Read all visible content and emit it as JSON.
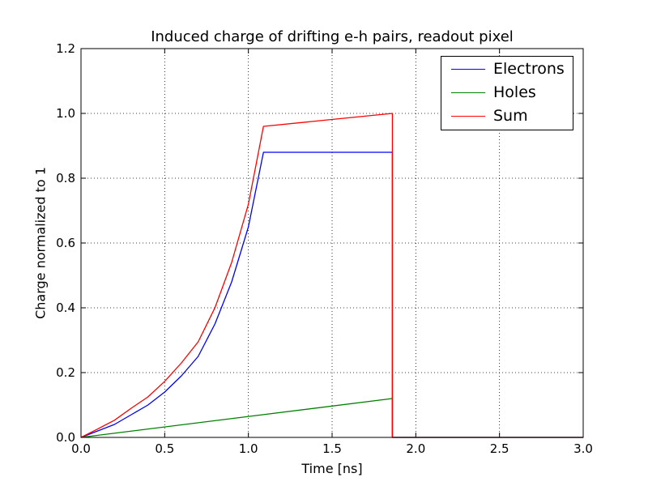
{
  "chart_data": {
    "type": "line",
    "title": "Induced charge of drifting e-h pairs, readout pixel",
    "xlabel": "Time [ns]",
    "ylabel": "Charge normalized to 1",
    "xlim": [
      0,
      3
    ],
    "ylim": [
      0,
      1.2
    ],
    "xticks": [
      "0.0",
      "0.5",
      "1.0",
      "1.5",
      "2.0",
      "2.5",
      "3.0"
    ],
    "yticks": [
      "0.0",
      "0.2",
      "0.4",
      "0.6",
      "0.8",
      "1.0",
      "1.2"
    ],
    "grid": true,
    "legend_position": "top-right",
    "series": [
      {
        "name": "Electrons",
        "color": "#0000ff",
        "x": [
          0,
          0.1,
          0.2,
          0.3,
          0.4,
          0.5,
          0.6,
          0.7,
          0.8,
          0.9,
          1.0,
          1.09,
          1.86,
          1.86,
          3.0
        ],
        "y": [
          0,
          0.02,
          0.04,
          0.07,
          0.1,
          0.14,
          0.19,
          0.25,
          0.35,
          0.48,
          0.65,
          0.88,
          0.88,
          0,
          0
        ]
      },
      {
        "name": "Holes",
        "color": "#008000",
        "x": [
          0,
          1.86,
          1.86,
          3.0
        ],
        "y": [
          0,
          0.12,
          0,
          0
        ]
      },
      {
        "name": "Sum",
        "color": "#ff0000",
        "x": [
          0,
          0.1,
          0.2,
          0.3,
          0.4,
          0.5,
          0.6,
          0.7,
          0.8,
          0.9,
          1.0,
          1.09,
          1.86,
          1.86,
          3.0
        ],
        "y": [
          0,
          0.026,
          0.053,
          0.09,
          0.125,
          0.173,
          0.23,
          0.295,
          0.4,
          0.54,
          0.72,
          0.96,
          1.0,
          0,
          0
        ]
      }
    ]
  }
}
